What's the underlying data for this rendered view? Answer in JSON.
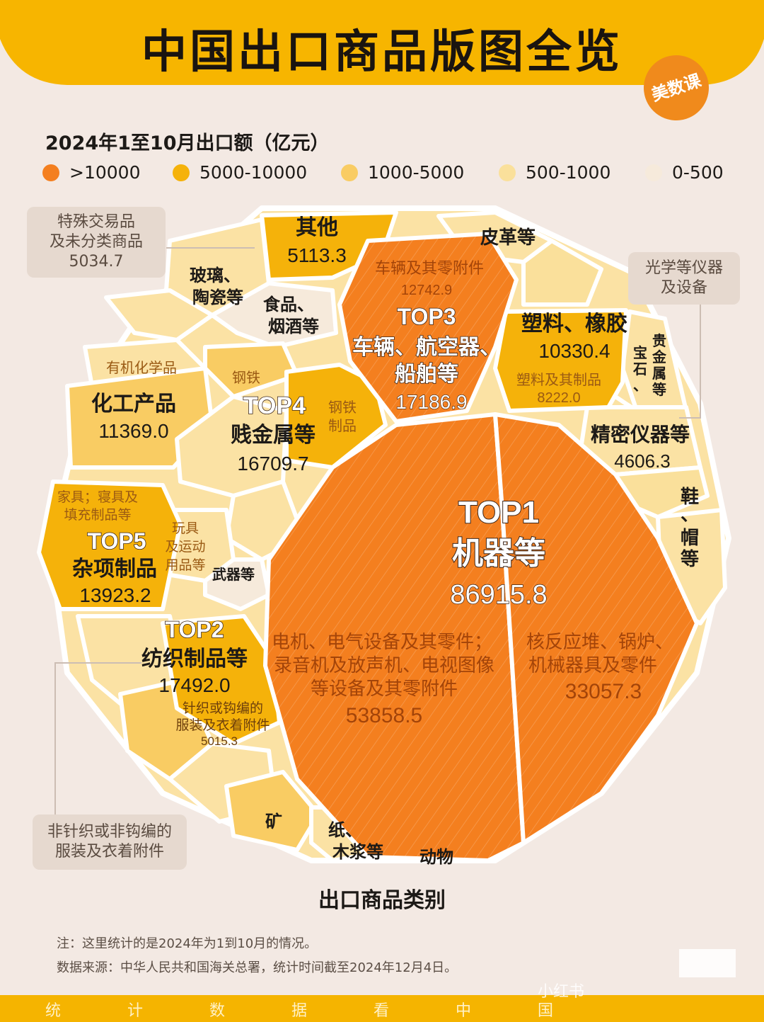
{
  "header": {
    "title": "中国出口商品版图全览",
    "brand": "美数课"
  },
  "subtitle": "2024年1至10月出口额（亿元）",
  "legend": [
    {
      "label": ">10000",
      "color": "#f47f1f"
    },
    {
      "label": "5000-10000",
      "color": "#f5b20a"
    },
    {
      "label": "1000-5000",
      "color": "#f9cc63"
    },
    {
      "label": "500-1000",
      "color": "#fae09b"
    },
    {
      "label": "0-500",
      "color": "#f6eadb"
    }
  ],
  "callouts": {
    "special": [
      "特殊交易品",
      "及未分类商品",
      "5034.7"
    ],
    "optical": [
      "光学等仪器",
      "及设备"
    ],
    "apparel": [
      "非针织或非钩编的",
      "服装及衣着附件"
    ]
  },
  "chart_data": {
    "type": "voronoi-treemap",
    "title": "中国出口商品版图全览",
    "unit": "亿元",
    "xlabel": "出口商品类别",
    "categories": [
      {
        "rank": "TOP1",
        "name": "机器等",
        "value": 86915.8,
        "sub": [
          {
            "name": "电机、电气设备及其零件;录音机及放声机、电视图像等设备及其零附件",
            "value": 53858.5
          },
          {
            "name": "核反应堆、锅炉、机械器具及零件",
            "value": 33057.3
          }
        ]
      },
      {
        "rank": "TOP2",
        "name": "纺织制品等",
        "value": 17492.0,
        "sub": [
          {
            "name": "针织或钩编的服装及衣着附件",
            "value": 5015.3
          },
          {
            "name": "非针织或非钩编的服装及衣着附件"
          }
        ]
      },
      {
        "rank": "TOP3",
        "name": "车辆、航空器、船舶等",
        "value": 17186.9,
        "sub": [
          {
            "name": "车辆及其零附件",
            "value": 12742.9
          }
        ]
      },
      {
        "rank": "TOP4",
        "name": "贱金属等",
        "value": 16709.7,
        "sub": [
          {
            "name": "钢铁"
          },
          {
            "name": "钢铁制品"
          }
        ]
      },
      {
        "rank": "TOP5",
        "name": "杂项制品",
        "value": 13923.2,
        "sub": [
          {
            "name": "家具;寝具及填充制品等"
          },
          {
            "name": "玩具及运动用品等"
          }
        ]
      },
      {
        "name": "化工产品",
        "value": 11369.0,
        "sub": [
          {
            "name": "有机化学品"
          }
        ]
      },
      {
        "name": "塑料、橡胶",
        "value": 10330.4,
        "sub": [
          {
            "name": "塑料及其制品",
            "value": 8222.0
          }
        ]
      },
      {
        "name": "其他",
        "value": 5113.3,
        "sub": [
          {
            "name": "特殊交易品及未分类商品",
            "value": 5034.7
          }
        ]
      },
      {
        "name": "精密仪器等",
        "value": 4606.3,
        "sub": [
          {
            "name": "光学等仪器及设备"
          }
        ]
      },
      {
        "name": "皮革等"
      },
      {
        "name": "玻璃、陶瓷等"
      },
      {
        "name": "食品、烟酒等"
      },
      {
        "name": "贵金属等"
      },
      {
        "name": "宝石"
      },
      {
        "name": "鞋、帽等"
      },
      {
        "name": "武器等"
      },
      {
        "name": "矿"
      },
      {
        "name": "纸、木浆等"
      },
      {
        "name": "动物"
      }
    ]
  },
  "labels": {
    "top1": {
      "rank": "TOP1",
      "name": "机器等",
      "value": "86915.8"
    },
    "top1a": [
      "电机、电气设备及其零件；",
      "录音机及放声机、电视图像",
      "等设备及其零附件",
      "53858.5"
    ],
    "top1b": [
      "核反应堆、锅炉、",
      "机械器具及零件",
      "33057.3"
    ],
    "top2": {
      "rank": "TOP2",
      "name": "纺织制品等",
      "value": "17492.0"
    },
    "top2a": [
      "针织或钩编的",
      "服装及衣着附件",
      "5015.3"
    ],
    "top3": {
      "rank": "TOP3",
      "name1": "车辆、航空器、",
      "name2": "船舶等",
      "value": "17186.9"
    },
    "top3a": [
      "车辆及其零附件",
      "12742.9"
    ],
    "top4": {
      "rank": "TOP4",
      "name": "贱金属等",
      "value": "16709.7",
      "sub1": "钢铁",
      "sub2a": "钢铁",
      "sub2b": "制品"
    },
    "top5": {
      "rank": "TOP5",
      "name": "杂项制品",
      "value": "13923.2",
      "sub1a": "家具；寝具及",
      "sub1b": "填充制品等",
      "sub2a": "玩具",
      "sub2b": "及运动",
      "sub2c": "用品等"
    },
    "chem": {
      "name": "化工产品",
      "value": "11369.0",
      "sub": "有机化学品"
    },
    "plastic": {
      "name": "塑料、橡胶",
      "value": "10330.4",
      "sub": "塑料及其制品",
      "subvalue": "8222.0"
    },
    "other": {
      "name": "其他",
      "value": "5113.3"
    },
    "precision": {
      "name": "精密仪器等",
      "value": "4606.3"
    },
    "leather": "皮革等",
    "glass": [
      "玻璃、",
      "陶瓷等"
    ],
    "food": [
      "食品、",
      "烟酒等"
    ],
    "precious": [
      "贵",
      "金",
      "属",
      "等"
    ],
    "gem": [
      "宝",
      "石",
      "、"
    ],
    "shoes": [
      "鞋",
      "、",
      "帽",
      "等"
    ],
    "weapons": "武器等",
    "mine": "矿",
    "paper": [
      "纸、",
      "木浆等"
    ],
    "animal": "动物"
  },
  "axis_title": "出口商品类别",
  "notes": [
    "注：这里统计的是2024年为1到10月的情况。",
    "数据来源：中华人民共和国海关总署，统计时间截至2024年12月4日。"
  ],
  "footer_chars": [
    "统",
    "计",
    "数",
    "据",
    "看",
    "中",
    "国"
  ],
  "watermark": "小红书"
}
